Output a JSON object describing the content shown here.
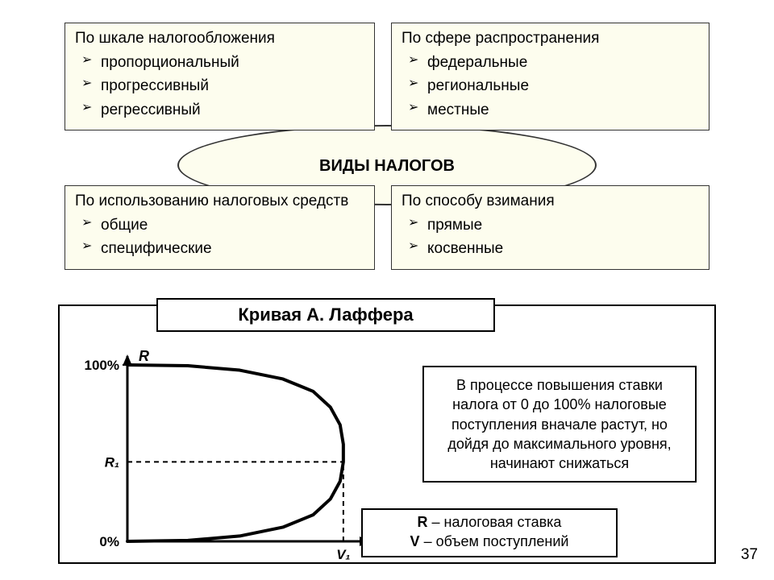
{
  "center": {
    "title": "ВИДЫ НАЛОГОВ"
  },
  "boxes": {
    "tl": {
      "title": "По шкале налогообложения",
      "items": [
        "пропорциональный",
        "прогрессивный",
        "регрессивный"
      ]
    },
    "tr": {
      "title": "По сфере распространения",
      "items": [
        "федеральные",
        "региональные",
        "местные"
      ]
    },
    "bl": {
      "title": "По использованию налоговых средств",
      "items": [
        "общие",
        "специфические"
      ]
    },
    "br": {
      "title": "По способу взимания",
      "items": [
        "прямые",
        "косвенные"
      ]
    }
  },
  "chart": {
    "title": "Кривая А. Лаффера",
    "description": "В процессе повышения ставки налога от 0 до 100% налоговые поступления вначале растут, но дойдя до максимального уровня, начинают снижаться",
    "legend": {
      "R_label": "R",
      "R_text": " – налоговая ставка",
      "V_label": "V",
      "V_text": " – объем поступлений"
    },
    "axes": {
      "y_label": "R",
      "x_label": "V",
      "y_ticks": [
        {
          "value": 0,
          "label": "0%"
        },
        {
          "value": 0.45,
          "label": "R₁"
        },
        {
          "value": 1.0,
          "label": "100%"
        }
      ],
      "x_ticks": [
        {
          "value": 1.0,
          "label": "V₁"
        }
      ],
      "xlim": [
        0,
        1.12
      ],
      "ylim": [
        0,
        1.05
      ]
    },
    "curve": {
      "type": "parametric-bow",
      "stroke": "#000000",
      "stroke_width": 4,
      "points": [
        [
          0.0,
          1.0
        ],
        [
          0.28,
          0.995
        ],
        [
          0.52,
          0.97
        ],
        [
          0.72,
          0.92
        ],
        [
          0.86,
          0.85
        ],
        [
          0.94,
          0.76
        ],
        [
          0.985,
          0.66
        ],
        [
          1.0,
          0.55
        ],
        [
          1.0,
          0.45
        ],
        [
          0.985,
          0.34
        ],
        [
          0.94,
          0.24
        ],
        [
          0.86,
          0.15
        ],
        [
          0.72,
          0.08
        ],
        [
          0.52,
          0.03
        ],
        [
          0.28,
          0.005
        ],
        [
          0.0,
          0.0
        ]
      ]
    },
    "guides": {
      "dash": "6,5",
      "stroke": "#000000",
      "stroke_width": 2,
      "r1_y": 0.45,
      "v1_x": 1.0
    },
    "colors": {
      "background": "#ffffff",
      "axis": "#000000"
    },
    "box_fill": "#fdfdee",
    "font_family": "Arial"
  },
  "page_number": "37"
}
